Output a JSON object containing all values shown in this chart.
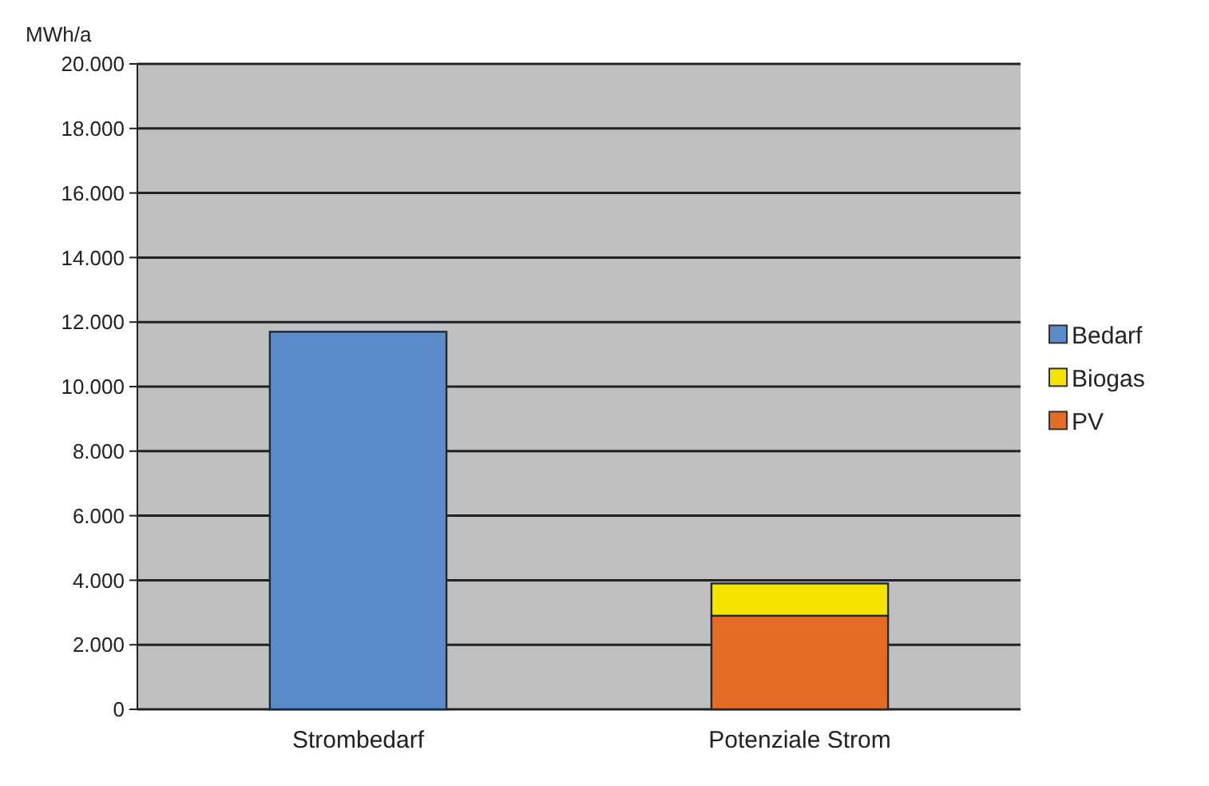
{
  "chart_data": {
    "type": "bar",
    "ylabel": "MWh/a",
    "categories": [
      "Strombedarf",
      "Potenziale Strom"
    ],
    "stacked": true,
    "series": [
      {
        "name": "Bedarf",
        "color": "#5b8bc9",
        "values": [
          11700,
          null
        ]
      },
      {
        "name": "PV",
        "color": "#e46c24",
        "values": [
          null,
          2900
        ]
      },
      {
        "name": "Biogas",
        "color": "#f5e400",
        "values": [
          null,
          1000
        ]
      }
    ],
    "ylim": [
      0,
      20000
    ],
    "yticks": [
      {
        "value": 0,
        "label": "0"
      },
      {
        "value": 2000,
        "label": "2.000"
      },
      {
        "value": 4000,
        "label": "4.000"
      },
      {
        "value": 6000,
        "label": "6.000"
      },
      {
        "value": 8000,
        "label": "8.000"
      },
      {
        "value": 10000,
        "label": "10.000"
      },
      {
        "value": 12000,
        "label": "12.000"
      },
      {
        "value": 14000,
        "label": "14.000"
      },
      {
        "value": 16000,
        "label": "16.000"
      },
      {
        "value": 18000,
        "label": "18.000"
      },
      {
        "value": 20000,
        "label": "20.000"
      }
    ],
    "grid": "y",
    "legend": "right"
  }
}
